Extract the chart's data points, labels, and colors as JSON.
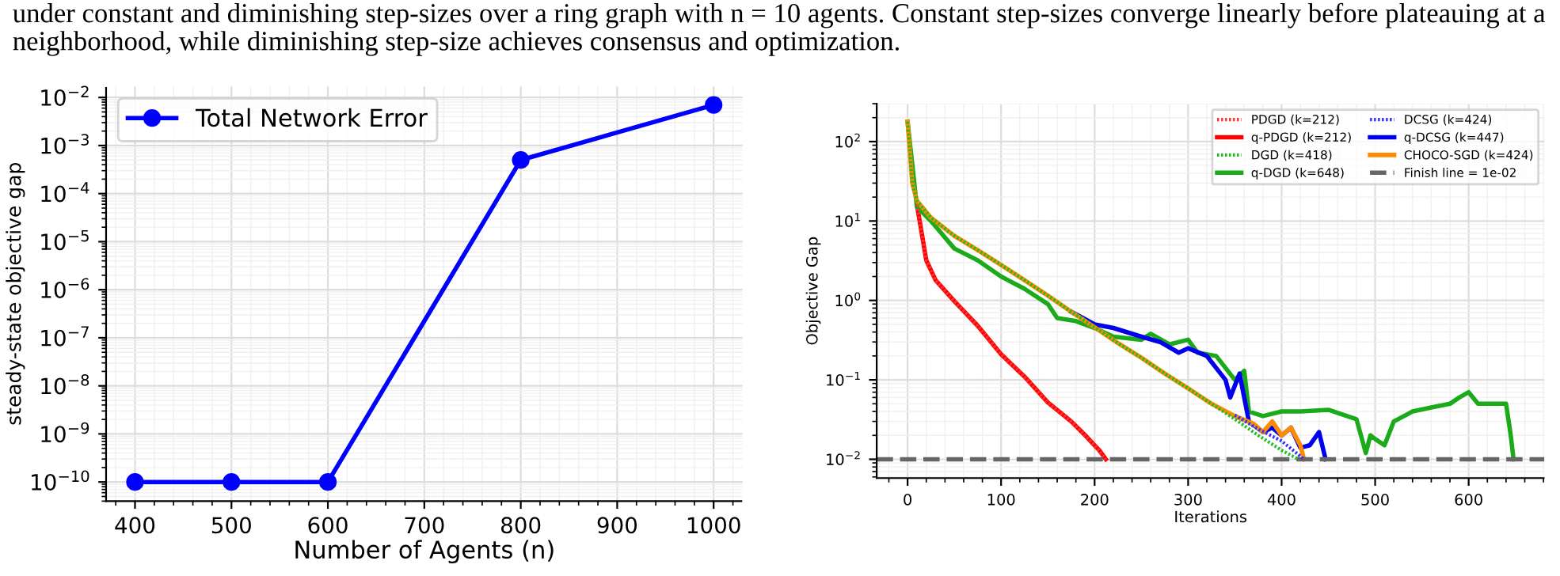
{
  "chart_data": [
    {
      "type": "line",
      "annotations": [
        "under constant and diminishing step-sizes over a ring graph with n = 10 agents. Constant step-sizes converge linearly before plateauing at a neighborhood, while diminishing step-size achieves consensus and optimization."
      ],
      "xlabel": "Number of Agents (n)",
      "ylabel": "steady-state objective gap",
      "log": "y",
      "grid": true,
      "legend": "top left",
      "marker": "circle",
      "line_style": "solid",
      "x": [
        400,
        500,
        600,
        800,
        1000
      ],
      "series": [
        {
          "name": "Total Network Error",
          "color": "#0000ff",
          "values": [
            1e-10,
            1e-10,
            1e-10,
            0.0005,
            0.007
          ]
        }
      ],
      "xlim": [
        370,
        1030
      ],
      "xticks": [
        400,
        500,
        600,
        700,
        800,
        900,
        1000
      ],
      "ylim": [
        4e-11,
        0.017
      ],
      "yticks": [
        {
          "value": 1e-10,
          "label": "10$^{−10}$"
        },
        {
          "value": 1e-09,
          "label": "10$^{−9}$"
        },
        {
          "value": 1e-08,
          "label": "10$^{−8}$"
        },
        {
          "value": 1e-07,
          "label": "10$^{−7}$"
        },
        {
          "value": 1e-06,
          "label": "10$^{−6}$"
        },
        {
          "value": 1e-05,
          "label": "10$^{−5}$"
        },
        {
          "value": 0.0001,
          "label": "10$^{−4}$"
        },
        {
          "value": 0.001,
          "label": "10$^{−3}$"
        },
        {
          "value": 0.01,
          "label": "10$^{−2}$"
        }
      ]
    },
    {
      "type": "line",
      "xlabel": "Iterations",
      "ylabel": "Objective Gap",
      "log": "y",
      "grid": true,
      "legend": "top right",
      "marker": "none",
      "series": [
        {
          "name": "PDGD (k=212)",
          "color": "#ff3333",
          "line_style": "dotted",
          "x": [
            10,
            20,
            30,
            50,
            75,
            100,
            125,
            150,
            175,
            200,
            212
          ],
          "values": [
            16,
            3.2,
            1.8,
            0.98,
            0.48,
            0.21,
            0.11,
            0.052,
            0.03,
            0.015,
            0.01
          ]
        },
        {
          "name": "q-PDGD (k=212)",
          "color": "#ff0000",
          "line_style": "solid",
          "x": [
            10,
            20,
            30,
            50,
            75,
            100,
            125,
            150,
            175,
            190,
            200,
            205,
            212
          ],
          "values": [
            16,
            3.2,
            1.8,
            0.98,
            0.48,
            0.21,
            0.11,
            0.052,
            0.03,
            0.02,
            0.015,
            0.013,
            0.01
          ]
        },
        {
          "name": "DGD (k=418)",
          "color": "#22bb22",
          "line_style": "dotted",
          "x": [
            0,
            5,
            10,
            25,
            50,
            75,
            100,
            125,
            150,
            175,
            200,
            225,
            250,
            275,
            300,
            325,
            350,
            375,
            400,
            418
          ],
          "values": [
            178,
            30,
            18,
            11,
            6.5,
            4.3,
            2.8,
            1.8,
            1.15,
            0.72,
            0.46,
            0.29,
            0.19,
            0.12,
            0.078,
            0.05,
            0.032,
            0.02,
            0.013,
            0.01
          ]
        },
        {
          "name": "q-DGD (k=648)",
          "color": "#1aaa1a",
          "line_style": "solid",
          "x": [
            0,
            10,
            25,
            50,
            75,
            100,
            125,
            150,
            160,
            180,
            200,
            220,
            250,
            260,
            280,
            300,
            310,
            330,
            350,
            360,
            365,
            380,
            400,
            420,
            450,
            470,
            480,
            490,
            495,
            500,
            510,
            520,
            540,
            560,
            580,
            590,
            600,
            610,
            640,
            645,
            648
          ],
          "values": [
            178,
            15,
            10,
            4.5,
            3.2,
            2,
            1.4,
            0.9,
            0.6,
            0.55,
            0.45,
            0.35,
            0.32,
            0.38,
            0.28,
            0.32,
            0.22,
            0.2,
            0.1,
            0.13,
            0.04,
            0.035,
            0.04,
            0.04,
            0.042,
            0.035,
            0.032,
            0.012,
            0.02,
            0.018,
            0.015,
            0.03,
            0.04,
            0.045,
            0.05,
            0.06,
            0.07,
            0.05,
            0.05,
            0.02,
            0.01
          ]
        },
        {
          "name": "DCSG (k=424)",
          "color": "#3333ff",
          "line_style": "dotted",
          "x": [
            350,
            375,
            400,
            424
          ],
          "values": [
            0.036,
            0.024,
            0.017,
            0.01
          ]
        },
        {
          "name": "q-DCSG (k=447)",
          "color": "#0000ee",
          "line_style": "solid",
          "x": [
            175,
            200,
            220,
            250,
            270,
            290,
            300,
            320,
            340,
            345,
            355,
            365,
            380,
            390,
            400,
            410,
            420,
            430,
            440,
            447
          ],
          "values": [
            0.72,
            0.5,
            0.45,
            0.35,
            0.3,
            0.22,
            0.25,
            0.2,
            0.1,
            0.06,
            0.12,
            0.03,
            0.022,
            0.025,
            0.02,
            0.025,
            0.014,
            0.015,
            0.022,
            0.01
          ]
        },
        {
          "name": "CHOCO-SGD (k=424)",
          "color": "#ff8c00",
          "line_style": "solid",
          "x": [
            0,
            5,
            10,
            25,
            50,
            75,
            100,
            125,
            150,
            175,
            200,
            225,
            250,
            275,
            300,
            325,
            350,
            370,
            380,
            390,
            400,
            410,
            420,
            424
          ],
          "values": [
            178,
            30,
            18,
            11,
            6.5,
            4.3,
            2.8,
            1.8,
            1.15,
            0.72,
            0.46,
            0.29,
            0.19,
            0.12,
            0.078,
            0.05,
            0.035,
            0.028,
            0.022,
            0.03,
            0.02,
            0.025,
            0.015,
            0.01
          ]
        }
      ],
      "ref_lines": [
        {
          "axis": "y",
          "value": 0.01,
          "label": "Finish line = 1e-02",
          "color": "#666666",
          "line_style": "dashed"
        }
      ],
      "xlim": [
        -33,
        681
      ],
      "xticks": [
        0,
        100,
        200,
        300,
        400,
        500,
        600
      ],
      "ylim": [
        0.0058,
        300
      ],
      "yticks": [
        {
          "value": 0.01,
          "label": "10$^{−2}$"
        },
        {
          "value": 0.1,
          "label": "10$^{−1}$"
        },
        {
          "value": 1,
          "label": "10$^{0}$"
        },
        {
          "value": 10,
          "label": "10$^{1}$"
        },
        {
          "value": 100,
          "label": "10$^{2}$"
        }
      ]
    }
  ]
}
